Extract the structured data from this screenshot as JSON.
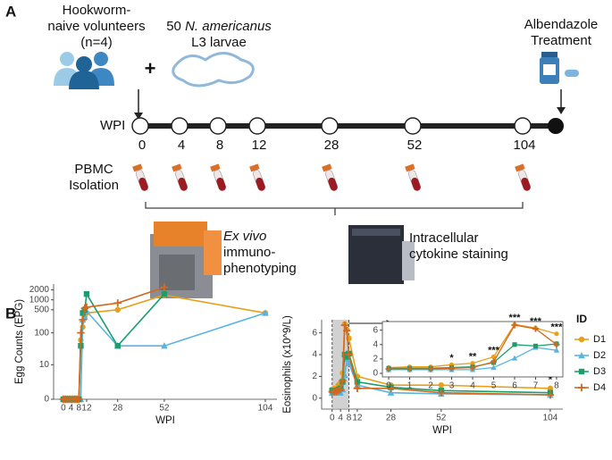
{
  "panel_a": {
    "label": "A",
    "volunteers": [
      "Hookworm-",
      "naive volunteers",
      "(n=4)"
    ],
    "plus": "+",
    "larvae": {
      "line1": [
        "50 ",
        "N. americanus"
      ],
      "line2": "L3 larvae"
    },
    "treatment": [
      "Albendazole",
      "Treatment"
    ],
    "timeline": {
      "label": "WPI",
      "points": [
        0,
        4,
        8,
        12,
        28,
        52,
        104
      ]
    },
    "pbmc": [
      "PBMC",
      "Isolation"
    ],
    "exvivo": {
      "line1": "Ex vivo",
      "line2": "immuno-",
      "line3": "phenotyping"
    },
    "ics": [
      "Intracellular",
      "cytokine staining"
    ]
  },
  "panel_b_label": "B",
  "chart_data": [
    {
      "type": "line",
      "ylabel": "Egg Counts (EPG)",
      "xlabel": "WPI",
      "yscale": "log1p",
      "x": [
        0,
        1,
        2,
        3,
        4,
        5,
        6,
        7,
        8,
        9,
        10,
        11,
        12,
        28,
        52,
        104
      ],
      "xlim": [
        -5,
        110
      ],
      "xticks": [
        0,
        4,
        8,
        12,
        28,
        52,
        104
      ],
      "ylim": [
        0,
        3000
      ],
      "yticks": [
        0,
        10,
        100,
        500,
        1000,
        2000
      ],
      "series": [
        {
          "name": "D1",
          "color": "#e8a01b",
          "marker": "circle",
          "values": [
            0,
            0,
            0,
            0,
            0,
            0,
            0,
            0,
            0,
            60,
            150,
            300,
            400,
            500,
            1400,
            400
          ]
        },
        {
          "name": "D2",
          "color": "#5ab4e0",
          "marker": "triangle",
          "values": [
            0,
            0,
            0,
            0,
            0,
            0,
            0,
            0,
            0,
            0,
            250,
            300,
            450,
            40,
            40,
            400
          ]
        },
        {
          "name": "D3",
          "color": "#1a9e6e",
          "marker": "square",
          "values": [
            0,
            0,
            0,
            0,
            0,
            0,
            0,
            0,
            0,
            40,
            400,
            500,
            1500,
            40,
            1500,
            null
          ]
        },
        {
          "name": "D4",
          "color": "#d2691e",
          "marker": "plus",
          "values": [
            0,
            0,
            0,
            0,
            0,
            0,
            0,
            0,
            0,
            100,
            250,
            550,
            600,
            800,
            2400,
            null
          ]
        }
      ]
    },
    {
      "type": "line",
      "ylabel": "Eosinophils (x10^9/L)",
      "xlabel": "WPI",
      "x": [
        0,
        1,
        2,
        3,
        4,
        5,
        6,
        7,
        8,
        12,
        28,
        52,
        104
      ],
      "xlim": [
        -5,
        110
      ],
      "xticks": [
        0,
        4,
        8,
        12,
        28,
        52,
        104
      ],
      "ylim": [
        -1,
        7.2
      ],
      "yticks": [
        0,
        2,
        4,
        6
      ],
      "shade_x": [
        0,
        8
      ],
      "annotations": [
        {
          "x": 28,
          "text": "***"
        },
        {
          "x": 52,
          "text": "**"
        },
        {
          "x": 104,
          "text": "*"
        }
      ],
      "legend_title": "ID",
      "legend": "right",
      "inset": {
        "xlim": [
          -0.3,
          8.3
        ],
        "ylim": [
          -0.5,
          7.2
        ],
        "xticks": [
          0,
          1,
          2,
          3,
          4,
          5,
          6,
          7,
          8
        ],
        "yticks": [
          0,
          2,
          4,
          6
        ],
        "annotations": [
          {
            "x": 3,
            "text": "*"
          },
          {
            "x": 4,
            "text": "**"
          },
          {
            "x": 5,
            "text": "***"
          },
          {
            "x": 6,
            "text": "***"
          },
          {
            "x": 7,
            "text": "***"
          },
          {
            "x": 8,
            "text": "***"
          }
        ]
      },
      "series": [
        {
          "name": "D1",
          "color": "#e8a01b",
          "marker": "circle",
          "values": [
            0.8,
            0.9,
            0.9,
            1.2,
            1.4,
            2.3,
            6.8,
            6.3,
            5.5,
            2.0,
            1.2,
            1.2,
            0.9
          ]
        },
        {
          "name": "D2",
          "color": "#5ab4e0",
          "marker": "triangle",
          "values": [
            0.5,
            0.5,
            0.5,
            0.5,
            0.5,
            0.8,
            2.1,
            3.6,
            3.2,
            1.2,
            0.5,
            0.4,
            0.3
          ]
        },
        {
          "name": "D3",
          "color": "#1a9e6e",
          "marker": "square",
          "values": [
            0.7,
            0.7,
            0.7,
            0.8,
            0.9,
            1.5,
            4.0,
            3.8,
            4.1,
            1.5,
            1.0,
            0.7,
            0.5
          ]
        },
        {
          "name": "D4",
          "color": "#d2691e",
          "marker": "plus",
          "values": [
            0.6,
            0.6,
            0.6,
            0.7,
            0.8,
            1.6,
            6.7,
            6.2,
            4.0,
            0.9,
            0.9,
            0.5,
            0.3
          ]
        }
      ]
    }
  ]
}
